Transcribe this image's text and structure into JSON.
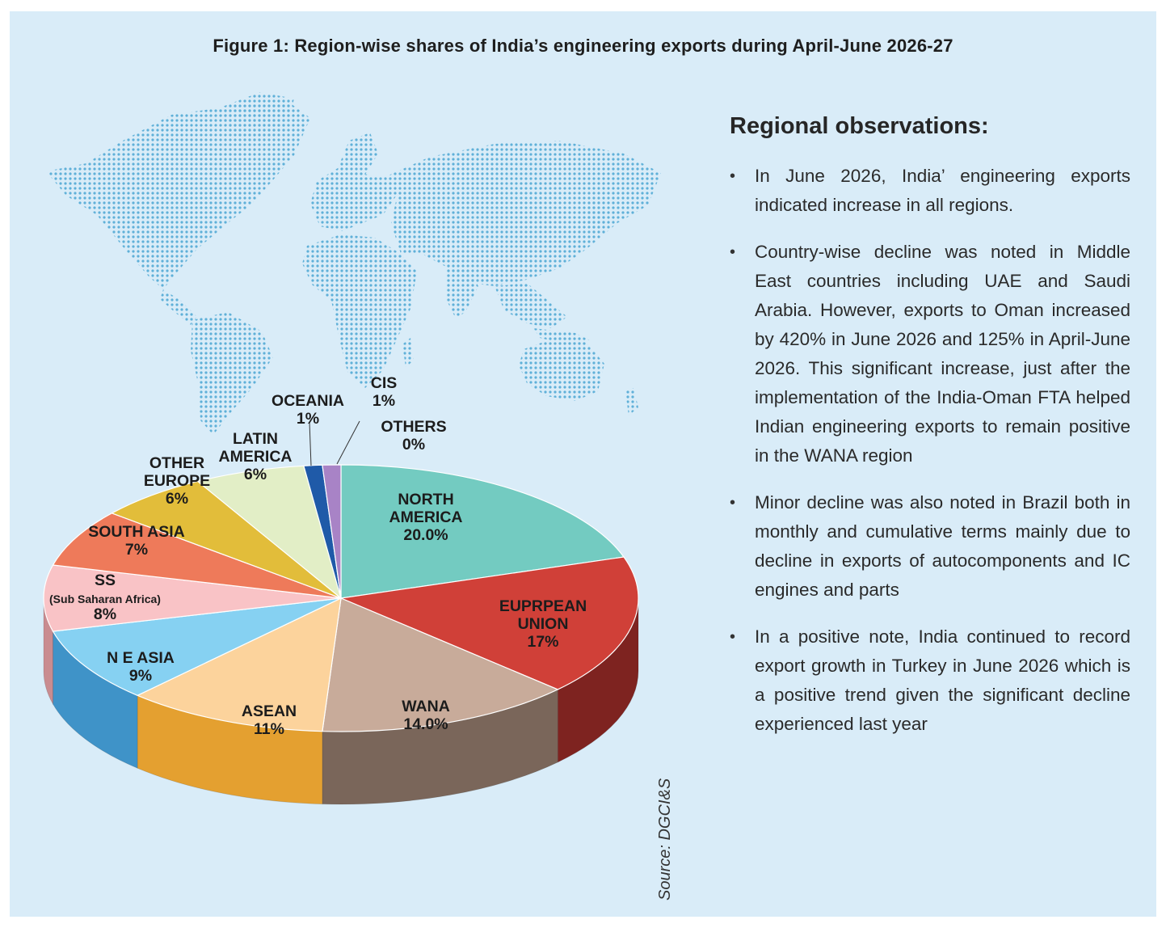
{
  "title": "Figure 1: Region-wise shares of India’s engineering exports during April-June 2026-27",
  "source": "Source: DGCI&S",
  "chart_data": {
    "type": "pie",
    "style": "3d",
    "title": "Figure 1: Region-wise shares of India’s engineering exports during April-June 2026-27",
    "unit": "%",
    "slices": [
      {
        "name": "NORTH AMERICA",
        "lines": [
          "NORTH",
          "AMERICA"
        ],
        "value": 20.0,
        "display": "20.0%",
        "color": "#73cbc1",
        "side": "#3c9d94"
      },
      {
        "name": "EUPRPEAN UNION",
        "lines": [
          "EUPRPEAN",
          "UNION"
        ],
        "value": 17,
        "display": "17%",
        "color": "#d04038",
        "side": "#7e2320"
      },
      {
        "name": "WANA",
        "lines": [
          "WANA"
        ],
        "value": 14.0,
        "display": "14.0%",
        "color": "#c8ab9a",
        "side": "#7a665a"
      },
      {
        "name": "ASEAN",
        "lines": [
          "ASEAN"
        ],
        "value": 11,
        "display": "11%",
        "color": "#fcd39c",
        "side": "#e4a030"
      },
      {
        "name": "N E ASIA",
        "lines": [
          "N E ASIA"
        ],
        "value": 9,
        "display": "9%",
        "color": "#86d1f2",
        "side": "#3f93c8"
      },
      {
        "name": "SS",
        "lines": [
          "SS",
          "(Sub Saharan Africa)"
        ],
        "value": 8,
        "display": "8%",
        "color": "#f9c3c6",
        "side": "#c98c90"
      },
      {
        "name": "SOUTH ASIA",
        "lines": [
          "SOUTH ASIA"
        ],
        "value": 7,
        "display": "7%",
        "color": "#ee7a5a",
        "side": "#b24b31"
      },
      {
        "name": "OTHER EUROPE",
        "lines": [
          "OTHER",
          "EUROPE"
        ],
        "value": 6,
        "display": "6%",
        "color": "#e2bd3a",
        "side": "#a68521"
      },
      {
        "name": "LATIN AMERICA",
        "lines": [
          "LATIN",
          "AMERICA"
        ],
        "value": 6,
        "display": "6%",
        "color": "#e2eec6",
        "side": "#a7b388"
      },
      {
        "name": "OCEANIA",
        "lines": [
          "OCEANIA"
        ],
        "value": 1,
        "display": "1%",
        "color": "#1f5aa8",
        "side": "#123a72"
      },
      {
        "name": "CIS",
        "lines": [
          "CIS"
        ],
        "value": 1,
        "display": "1%",
        "color": "#a883c6",
        "side": "#6c4f86"
      },
      {
        "name": "OTHERS",
        "lines": [
          "OTHERS"
        ],
        "value": 0,
        "display": "0%",
        "color": "#888888",
        "side": "#555555"
      }
    ]
  },
  "observations": {
    "heading": "Regional observations:",
    "bullet": "•",
    "items": [
      "In June 2026, India’ engineering exports indicated increase in all regions.",
      "Country-wise decline was noted in Middle East countries including UAE and Saudi Arabia. However, exports to Oman increased by 420% in June 2026 and 125% in April-June 2026. This significant increase, just after the implementation of the India-Oman FTA helped Indian engineering exports to remain positive in the WANA region",
      "Minor decline was also noted in Brazil both in monthly and cumulative terms mainly due to decline in exports of autocomponents and IC engines and parts",
      "In a positive note, India continued to record export growth in Turkey in June 2026 which is a positive trend given the significant decline experienced last year"
    ]
  },
  "colors": {
    "panel_background": "#d9ecf8",
    "map_dots": "#5fb0d8"
  },
  "map_icon": "world-map-dotted"
}
